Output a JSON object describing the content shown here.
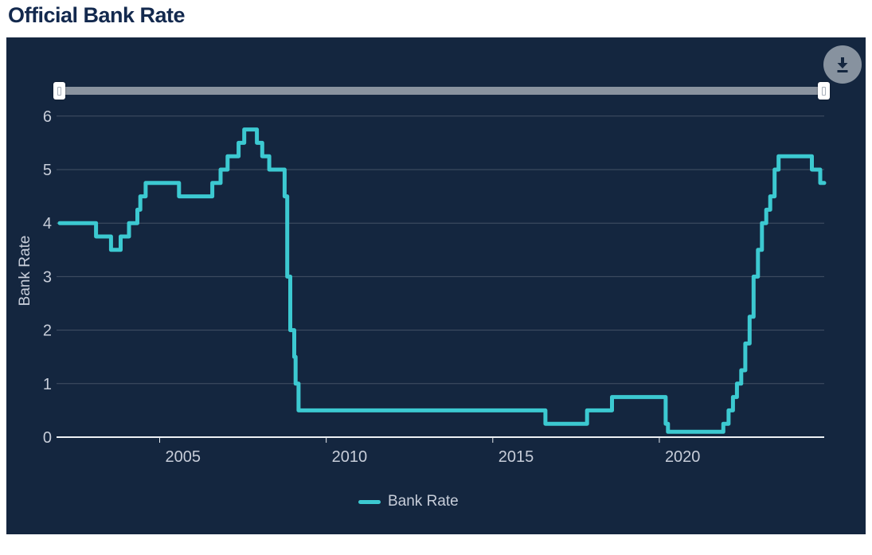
{
  "page": {
    "title": "Official Bank Rate"
  },
  "colors": {
    "panel_background": "#14263F",
    "accent_teal": "#3CC9D1",
    "title_navy": "#13294E",
    "axis_text": "#C7CDD9",
    "gridline": "rgba(255,255,255,0.2)",
    "baseline": "#EEF1F5",
    "slider_track": "#8A939F",
    "download_button": "#87929F"
  },
  "chart_data": {
    "type": "line",
    "step": true,
    "title": "Official Bank Rate",
    "xlabel": "",
    "ylabel": "Bank Rate",
    "x_range": [
      2002.0,
      2024.95
    ],
    "y_range": [
      0,
      6
    ],
    "y_ticks": [
      0,
      1,
      2,
      3,
      4,
      5,
      6
    ],
    "x_ticks": [
      2005,
      2010,
      2015,
      2020
    ],
    "grid": true,
    "legend_position": "bottom-center",
    "series": [
      {
        "name": "Bank Rate",
        "color": "#3CC9D1",
        "points": [
          [
            2002.0,
            4.0
          ],
          [
            2003.09,
            3.75
          ],
          [
            2003.54,
            3.5
          ],
          [
            2003.83,
            3.75
          ],
          [
            2004.08,
            4.0
          ],
          [
            2004.33,
            4.25
          ],
          [
            2004.42,
            4.5
          ],
          [
            2004.58,
            4.75
          ],
          [
            2005.58,
            4.5
          ],
          [
            2006.58,
            4.75
          ],
          [
            2006.83,
            5.0
          ],
          [
            2007.04,
            5.25
          ],
          [
            2007.37,
            5.5
          ],
          [
            2007.54,
            5.75
          ],
          [
            2007.92,
            5.5
          ],
          [
            2008.08,
            5.25
          ],
          [
            2008.29,
            5.0
          ],
          [
            2008.75,
            4.5
          ],
          [
            2008.83,
            3.0
          ],
          [
            2008.92,
            2.0
          ],
          [
            2009.04,
            1.5
          ],
          [
            2009.08,
            1.0
          ],
          [
            2009.17,
            0.5
          ],
          [
            2016.58,
            0.25
          ],
          [
            2017.83,
            0.5
          ],
          [
            2018.58,
            0.75
          ],
          [
            2020.19,
            0.25
          ],
          [
            2020.26,
            0.1
          ],
          [
            2021.92,
            0.25
          ],
          [
            2022.08,
            0.5
          ],
          [
            2022.21,
            0.75
          ],
          [
            2022.33,
            1.0
          ],
          [
            2022.46,
            1.25
          ],
          [
            2022.58,
            1.75
          ],
          [
            2022.71,
            2.25
          ],
          [
            2022.83,
            3.0
          ],
          [
            2022.96,
            3.5
          ],
          [
            2023.08,
            4.0
          ],
          [
            2023.21,
            4.25
          ],
          [
            2023.33,
            4.5
          ],
          [
            2023.46,
            5.0
          ],
          [
            2023.58,
            5.25
          ],
          [
            2024.58,
            5.0
          ],
          [
            2024.83,
            4.75
          ]
        ]
      }
    ]
  }
}
